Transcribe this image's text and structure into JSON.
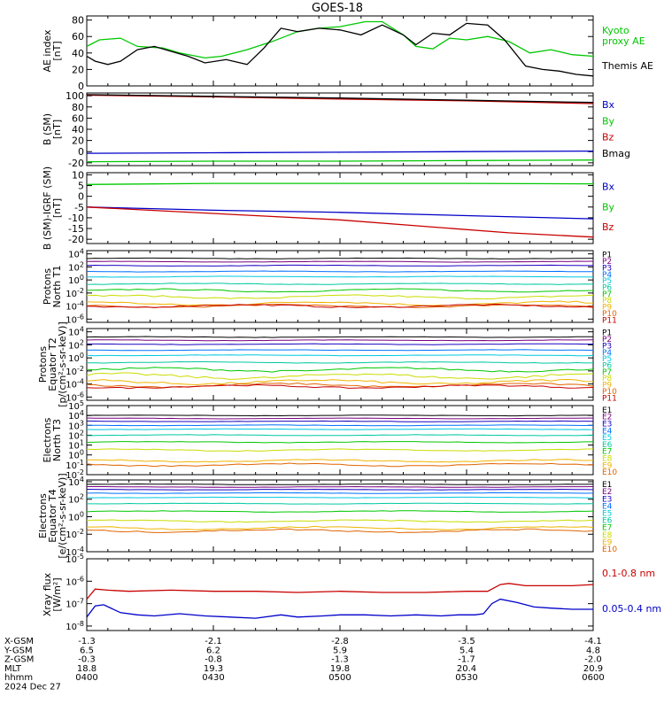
{
  "title": "GOES-18",
  "colors": {
    "black": "#000000",
    "green": "#00c800",
    "red": "#c80000",
    "blue": "#0000c8",
    "channels": [
      "#000000",
      "#7a0080",
      "#1a00c0",
      "#0070ff",
      "#00c8e0",
      "#00c8a0",
      "#00c800",
      "#c8dc00",
      "#f0b400",
      "#e06400",
      "#c80000",
      "#c80000"
    ]
  },
  "x_axis": {
    "ticks": [
      "0400",
      "0430",
      "0500",
      "0530",
      "0600"
    ],
    "rows": [
      {
        "label": "X-GSM",
        "values": [
          "-1.3",
          "-2.1",
          "-2.8",
          "-3.5",
          "-4.1"
        ]
      },
      {
        "label": "Y-GSM",
        "values": [
          "6.5",
          "6.2",
          "5.9",
          "5.4",
          "4.8"
        ]
      },
      {
        "label": "Z-GSM",
        "values": [
          "-0.3",
          "-0.8",
          "-1.3",
          "-1.7",
          "-2.0"
        ]
      },
      {
        "label": "MLT",
        "values": [
          "18.8",
          "19.3",
          "19.8",
          "20.4",
          "20.9"
        ]
      },
      {
        "label": "hhmm",
        "values": [
          "0400",
          "0430",
          "0500",
          "0530",
          "0600"
        ]
      }
    ],
    "date": "2024 Dec 27"
  },
  "chart_data": [
    {
      "type": "line",
      "ylabel": [
        "AE index",
        "[nT]"
      ],
      "ylim": [
        0,
        85
      ],
      "yticks": [
        "0",
        "20",
        "40",
        "60",
        "80"
      ],
      "legend": [
        "Kyoto",
        "proxy AE",
        "Themis AE"
      ],
      "series": [
        {
          "name": "Kyoto proxy AE",
          "color": "green",
          "x": [
            0,
            3,
            8,
            12,
            18,
            22,
            28,
            32,
            38,
            44,
            50,
            55,
            60,
            66,
            70,
            75,
            78,
            82,
            86,
            90,
            95,
            100,
            105,
            110,
            115,
            120
          ],
          "y": [
            48,
            56,
            58,
            48,
            46,
            40,
            34,
            36,
            44,
            54,
            66,
            70,
            72,
            78,
            78,
            62,
            48,
            45,
            58,
            56,
            60,
            54,
            40,
            44,
            38,
            36
          ]
        },
        {
          "name": "Themis AE",
          "color": "black",
          "x": [
            0,
            2,
            5,
            8,
            12,
            16,
            20,
            24,
            28,
            33,
            38,
            42,
            46,
            50,
            55,
            60,
            65,
            70,
            75,
            78,
            82,
            86,
            90,
            95,
            99,
            104,
            108,
            112,
            116,
            120
          ],
          "y": [
            36,
            30,
            26,
            30,
            44,
            48,
            42,
            36,
            28,
            32,
            26,
            46,
            70,
            66,
            70,
            68,
            62,
            74,
            62,
            50,
            64,
            62,
            76,
            74,
            56,
            24,
            20,
            18,
            14,
            12
          ]
        }
      ]
    },
    {
      "type": "line",
      "ylabel": [
        "B (SM)",
        "[nT]"
      ],
      "ylim": [
        -25,
        105
      ],
      "yticks": [
        "-20",
        "0",
        "20",
        "40",
        "60",
        "80",
        "100"
      ],
      "legend": [
        "Bx",
        "By",
        "Bz",
        "Bmag"
      ],
      "series": [
        {
          "name": "Bz",
          "color": "red",
          "x": [
            0,
            30,
            60,
            90,
            120
          ],
          "y": [
            101,
            98,
            94,
            91,
            86
          ]
        },
        {
          "name": "Bmag",
          "color": "black",
          "x": [
            0,
            30,
            60,
            90,
            120
          ],
          "y": [
            102,
            99,
            96,
            92,
            88
          ]
        },
        {
          "name": "Bx",
          "color": "blue",
          "x": [
            0,
            30,
            60,
            90,
            120
          ],
          "y": [
            -3,
            -2,
            -1,
            0,
            1
          ]
        },
        {
          "name": "By",
          "color": "green",
          "x": [
            0,
            30,
            60,
            90,
            120
          ],
          "y": [
            -18,
            -17,
            -17,
            -16,
            -15
          ]
        }
      ]
    },
    {
      "type": "line",
      "ylabel": [
        "B (SM)-IGRF (SM)",
        "[nT]"
      ],
      "ylim": [
        -22,
        11
      ],
      "yticks": [
        "-20",
        "-15",
        "-10",
        "-5",
        "0",
        "5",
        "10"
      ],
      "legend": [
        "Bx",
        "By",
        "Bz"
      ],
      "series": [
        {
          "name": "By",
          "color": "green",
          "x": [
            0,
            30,
            60,
            90,
            120
          ],
          "y": [
            5.5,
            6,
            6,
            6,
            5.8
          ]
        },
        {
          "name": "Bx",
          "color": "blue",
          "x": [
            0,
            30,
            60,
            90,
            120
          ],
          "y": [
            -5,
            -6.5,
            -7.5,
            -9,
            -10.5
          ]
        },
        {
          "name": "Bz",
          "color": "red",
          "x": [
            0,
            20,
            40,
            60,
            80,
            100,
            120
          ],
          "y": [
            -5,
            -7,
            -9,
            -11,
            -14,
            -17,
            -19
          ]
        }
      ]
    },
    {
      "type": "line",
      "log": true,
      "ylabel": [
        "Protons",
        "North T1"
      ],
      "ylim": [
        -6.5,
        4.5
      ],
      "yticks": [
        {
          "e": 4
        },
        {
          "e": 2
        },
        {
          "e": 0
        },
        {
          "e": -2
        },
        {
          "e": -4
        },
        {
          "e": -6
        }
      ],
      "legend": [
        "P1",
        "P2",
        "P3",
        "P4",
        "P5",
        "P6",
        "P7",
        "P8",
        "P9",
        "P10",
        "P11"
      ],
      "levels": [
        3.3,
        2.8,
        2.2,
        1.3,
        0.5,
        -0.6,
        -1.6,
        -2.6,
        -3.6,
        -4.0,
        -4.0
      ],
      "noise": [
        0.05,
        0.05,
        0.05,
        0.05,
        0.05,
        0.08,
        0.18,
        0.22,
        0.25,
        0.2,
        0.2
      ]
    },
    {
      "type": "line",
      "log": true,
      "ylabel": [
        "Protons",
        "Equator T2",
        "[p/(cm²-s-sr-keV)]"
      ],
      "ylim": [
        -6.5,
        4.5
      ],
      "yticks": [
        {
          "e": 4
        },
        {
          "e": 2
        },
        {
          "e": 0
        },
        {
          "e": -2
        },
        {
          "e": -4
        },
        {
          "e": -6
        }
      ],
      "legend": [
        "P1",
        "P2",
        "P3",
        "P4",
        "P5",
        "P6",
        "P7",
        "P8",
        "P9",
        "P10",
        "P11"
      ],
      "levels": [
        3.2,
        2.7,
        2.1,
        1.2,
        0.4,
        -0.7,
        -1.8,
        -2.8,
        -3.7,
        -4.2,
        -4.4
      ],
      "noise": [
        0.05,
        0.05,
        0.05,
        0.05,
        0.05,
        0.08,
        0.25,
        0.35,
        0.3,
        0.25,
        0.2
      ]
    },
    {
      "type": "line",
      "log": true,
      "ylabel": [
        "Electrons",
        "North T3"
      ],
      "ylim": [
        -2,
        5
      ],
      "yticks": [
        {
          "e": 5
        },
        {
          "e": 4
        },
        {
          "e": 3
        },
        {
          "e": 2
        },
        {
          "e": 1
        },
        {
          "e": 0
        },
        {
          "e": -1
        },
        {
          "e": -2
        }
      ],
      "legend": [
        "E1",
        "E2",
        "E3",
        "E4",
        "E5",
        "E6",
        "E7",
        "E8",
        "E9",
        "E10"
      ],
      "levels": [
        4.0,
        3.7,
        3.4,
        3.0,
        2.6,
        2.0,
        1.3,
        0.5,
        -0.6,
        -1.0
      ],
      "noise": [
        0.03,
        0.03,
        0.03,
        0.03,
        0.03,
        0.04,
        0.05,
        0.08,
        0.12,
        0.12
      ]
    },
    {
      "type": "line",
      "log": true,
      "ylabel": [
        "Electrons",
        "Equator T4",
        "[e/(cm²-s-sr-keV)]"
      ],
      "ylim": [
        -4,
        4.2
      ],
      "yticks": [
        {
          "e": 4
        },
        {
          "e": 2
        },
        {
          "e": 0
        },
        {
          "e": -2
        },
        {
          "e": -4
        }
      ],
      "legend": [
        "E1",
        "E2",
        "E3",
        "E4",
        "E5",
        "E6",
        "E7",
        "E8",
        "E9",
        "E10"
      ],
      "levels": [
        3.7,
        3.4,
        3.1,
        2.7,
        2.2,
        1.5,
        0.6,
        -0.5,
        -1.3,
        -1.6
      ],
      "noise": [
        0.03,
        0.03,
        0.03,
        0.03,
        0.03,
        0.04,
        0.06,
        0.1,
        0.15,
        0.15
      ]
    },
    {
      "type": "line",
      "log": true,
      "ylabel": [
        "Xray flux",
        "[W/m²]"
      ],
      "ylim": [
        -8.2,
        -5
      ],
      "yticks": [
        {
          "e": -5
        },
        {
          "e": -6
        },
        {
          "e": -7
        },
        {
          "e": -8
        }
      ],
      "legend": [
        "0.1-0.8 nm",
        "0.05-0.4 nm"
      ],
      "series": [
        {
          "name": "0.1-0.8 nm",
          "color": "red",
          "x": [
            0,
            2,
            5,
            10,
            20,
            30,
            40,
            50,
            60,
            70,
            80,
            90,
            95,
            98,
            100,
            104,
            110,
            115,
            120
          ],
          "y": [
            -6.8,
            -6.35,
            -6.4,
            -6.45,
            -6.4,
            -6.45,
            -6.45,
            -6.5,
            -6.45,
            -6.5,
            -6.5,
            -6.45,
            -6.45,
            -6.15,
            -6.1,
            -6.2,
            -6.2,
            -6.2,
            -6.15
          ]
        },
        {
          "name": "0.05-0.4 nm",
          "color": "blue",
          "x": [
            0,
            2,
            4,
            8,
            12,
            16,
            22,
            28,
            34,
            40,
            46,
            50,
            56,
            60,
            66,
            72,
            78,
            84,
            88,
            92,
            94,
            96,
            98,
            102,
            106,
            110,
            115,
            120
          ],
          "y": [
            -7.6,
            -7.1,
            -7.05,
            -7.4,
            -7.5,
            -7.55,
            -7.45,
            -7.55,
            -7.6,
            -7.65,
            -7.5,
            -7.6,
            -7.55,
            -7.5,
            -7.5,
            -7.55,
            -7.5,
            -7.55,
            -7.5,
            -7.5,
            -7.45,
            -7.0,
            -6.8,
            -6.95,
            -7.15,
            -7.2,
            -7.25,
            -7.25
          ]
        }
      ]
    }
  ]
}
